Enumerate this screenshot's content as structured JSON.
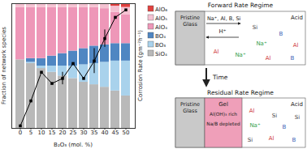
{
  "chart_data": {
    "type": "bar",
    "stacked": true,
    "legend": "right",
    "grid": false,
    "tick_labels": "x",
    "x_label": "B₂O₃ (mol. %)",
    "y_label": "Fraction of network species",
    "y2_label": "Corrosion Rate (gm⁻²h⁻¹)",
    "categories": [
      0,
      5,
      10,
      15,
      20,
      25,
      30,
      35,
      40,
      45,
      50
    ],
    "ylim": [
      0,
      1
    ],
    "y2lim": [
      0,
      1
    ],
    "series": [
      {
        "name": "SiO₄",
        "type": "bar",
        "color": "#b9b9b9",
        "values": [
          0.55,
          0.52,
          0.48,
          0.45,
          0.42,
          0.4,
          0.37,
          0.35,
          0.33,
          0.3,
          0.26
        ]
      },
      {
        "name": "BO₃",
        "type": "bar",
        "color": "#a9d2ec",
        "values": [
          0,
          0.01,
          0.02,
          0.05,
          0.08,
          0.1,
          0.14,
          0.17,
          0.2,
          0.24,
          0.28
        ]
      },
      {
        "name": "BO₄",
        "type": "bar",
        "color": "#4f86c2",
        "values": [
          0,
          0.03,
          0.06,
          0.08,
          0.1,
          0.12,
          0.13,
          0.14,
          0.14,
          0.14,
          0.14
        ]
      },
      {
        "name": "AlO₄",
        "type": "bar",
        "color": "#ee97b8",
        "values": [
          0.42,
          0.41,
          0.41,
          0.39,
          0.37,
          0.35,
          0.33,
          0.31,
          0.29,
          0.25,
          0.23
        ]
      },
      {
        "name": "AlO₅",
        "type": "bar",
        "color": "#f5c2d2",
        "values": [
          0.03,
          0.03,
          0.03,
          0.03,
          0.03,
          0.03,
          0.03,
          0.03,
          0.04,
          0.05,
          0.06
        ]
      },
      {
        "name": "AlO₆",
        "type": "bar",
        "color": "#e0413f",
        "values": [
          0,
          0,
          0,
          0,
          0,
          0,
          0,
          0,
          0,
          0.02,
          0.03
        ]
      },
      {
        "name": "Corrosion Rate (gm⁻²h⁻¹)",
        "type": "line",
        "axis": "y2",
        "color": "#000000",
        "marker": "square",
        "line_style": "solid",
        "values": [
          0.02,
          0.22,
          0.45,
          0.36,
          0.4,
          0.52,
          0.4,
          0.54,
          0.72,
          0.89,
          0.95
        ],
        "errors": [
          null,
          null,
          null,
          null,
          0.05,
          null,
          null,
          0.1,
          0.07,
          null,
          null
        ]
      }
    ]
  },
  "diagram": {
    "panels": [
      {
        "title": "Forward Rate Regime",
        "glass": "Pristine Glass",
        "acid": "Acid",
        "leaching": "Na⁺, Al, B, Si",
        "incoming": "H⁺",
        "species": [
          "Si",
          "B",
          "Al",
          "Na⁺",
          "Al",
          "Na⁺",
          "Al",
          "B"
        ]
      },
      {
        "title": "Residual Rate Regime",
        "glass": "Pristine Glass",
        "acid": "Acid",
        "gel": [
          "Gel",
          "Al(OH)₃ rich",
          "Na/B depleted"
        ],
        "species": [
          "Al",
          "Si",
          "Na⁺",
          "B",
          "Si",
          "Al",
          "B",
          "Si"
        ]
      }
    ],
    "arrow_label": "Time"
  }
}
